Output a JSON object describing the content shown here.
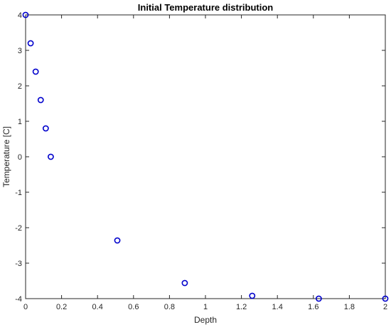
{
  "chart_data": {
    "type": "scatter",
    "title": "Initial Temperature distribution",
    "xlabel": "Depth",
    "ylabel": "Temperature [C]",
    "xlim": [
      0,
      2
    ],
    "ylim": [
      -4,
      4
    ],
    "xticks": [
      "0",
      "0.2",
      "0.4",
      "0.6",
      "0.8",
      "1",
      "1.2",
      "1.4",
      "1.6",
      "1.8",
      "2"
    ],
    "yticks": [
      "-4",
      "-3",
      "-2",
      "-1",
      "0",
      "1",
      "2",
      "3",
      "4"
    ],
    "grid": false,
    "marker": "circle",
    "marker_color": "#0000cc",
    "series": [
      {
        "x": [
          0.0,
          0.028,
          0.056,
          0.084,
          0.112,
          0.14,
          0.51,
          0.885,
          1.26,
          1.63,
          2.0
        ],
        "y": [
          4.0,
          3.2,
          2.4,
          1.6,
          0.8,
          0.0,
          -2.36,
          -3.56,
          -3.92,
          -4.0,
          -4.0
        ]
      }
    ]
  }
}
